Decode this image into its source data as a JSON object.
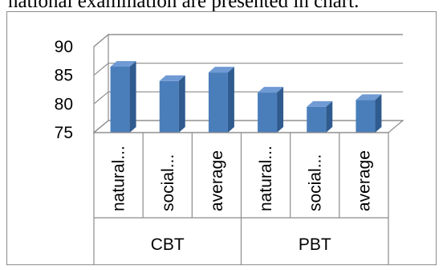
{
  "caption": "national examination are presented in chart.",
  "chart_data": {
    "type": "bar",
    "style": "3d-column",
    "title": "",
    "xlabel": "",
    "ylabel": "",
    "ylim": [
      75,
      90
    ],
    "yticks": [
      90,
      85,
      80,
      75
    ],
    "grid": true,
    "legend": "none",
    "bar_color": "#4a7ebb",
    "groups": [
      {
        "label": "CBT",
        "categories": [
          "natural...",
          "social...",
          "average"
        ],
        "values": [
          86.5,
          84.0,
          85.5
        ]
      },
      {
        "label": "PBT",
        "categories": [
          "natural...",
          "social...",
          "average"
        ],
        "values": [
          82.0,
          79.5,
          80.7
        ]
      }
    ]
  }
}
